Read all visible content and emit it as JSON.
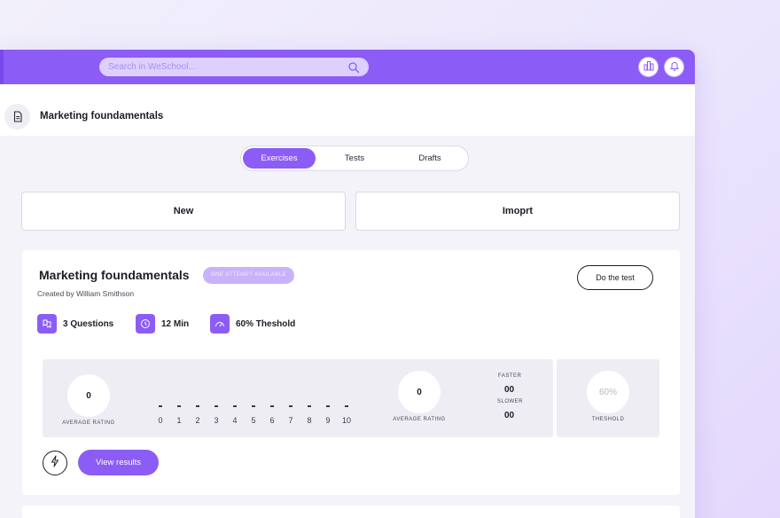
{
  "search": {
    "placeholder": "Search in WeSchool..."
  },
  "topbar": {
    "icons": [
      "chart-icon",
      "bell-icon"
    ],
    "accent": "#8c5cf7"
  },
  "header": {
    "title": "Marketing foundamentals"
  },
  "tabs": [
    {
      "label": "Exercises",
      "active": true
    },
    {
      "label": "Tests",
      "active": false
    },
    {
      "label": "Drafts",
      "active": false
    }
  ],
  "actions": {
    "new_label": "New",
    "import_label": "Imoprt"
  },
  "course": {
    "title": "Marketing foundamentals",
    "badge": "ONE ATTEMPT AVAILABLE",
    "creator": "Created by William Smithson",
    "do_test_label": "Do the test",
    "stats": {
      "questions": "3 Questions",
      "minutes": "12 Min",
      "threshold": "60% Theshold"
    },
    "results": {
      "average_rating_left": "0",
      "average_rating_left_label": "AVERAGE RATING",
      "scale": [
        "0",
        "1",
        "2",
        "3",
        "4",
        "5",
        "6",
        "7",
        "8",
        "9",
        "10"
      ],
      "average_rating_right": "0",
      "average_rating_right_label": "AVERAGE RATING",
      "faster_label": "FASTER",
      "faster_value": "00",
      "slower_label": "SLOWER",
      "slower_value": "00",
      "threshold_value": "60%",
      "threshold_label": "THESHOLD"
    },
    "view_results_label": "View results"
  }
}
